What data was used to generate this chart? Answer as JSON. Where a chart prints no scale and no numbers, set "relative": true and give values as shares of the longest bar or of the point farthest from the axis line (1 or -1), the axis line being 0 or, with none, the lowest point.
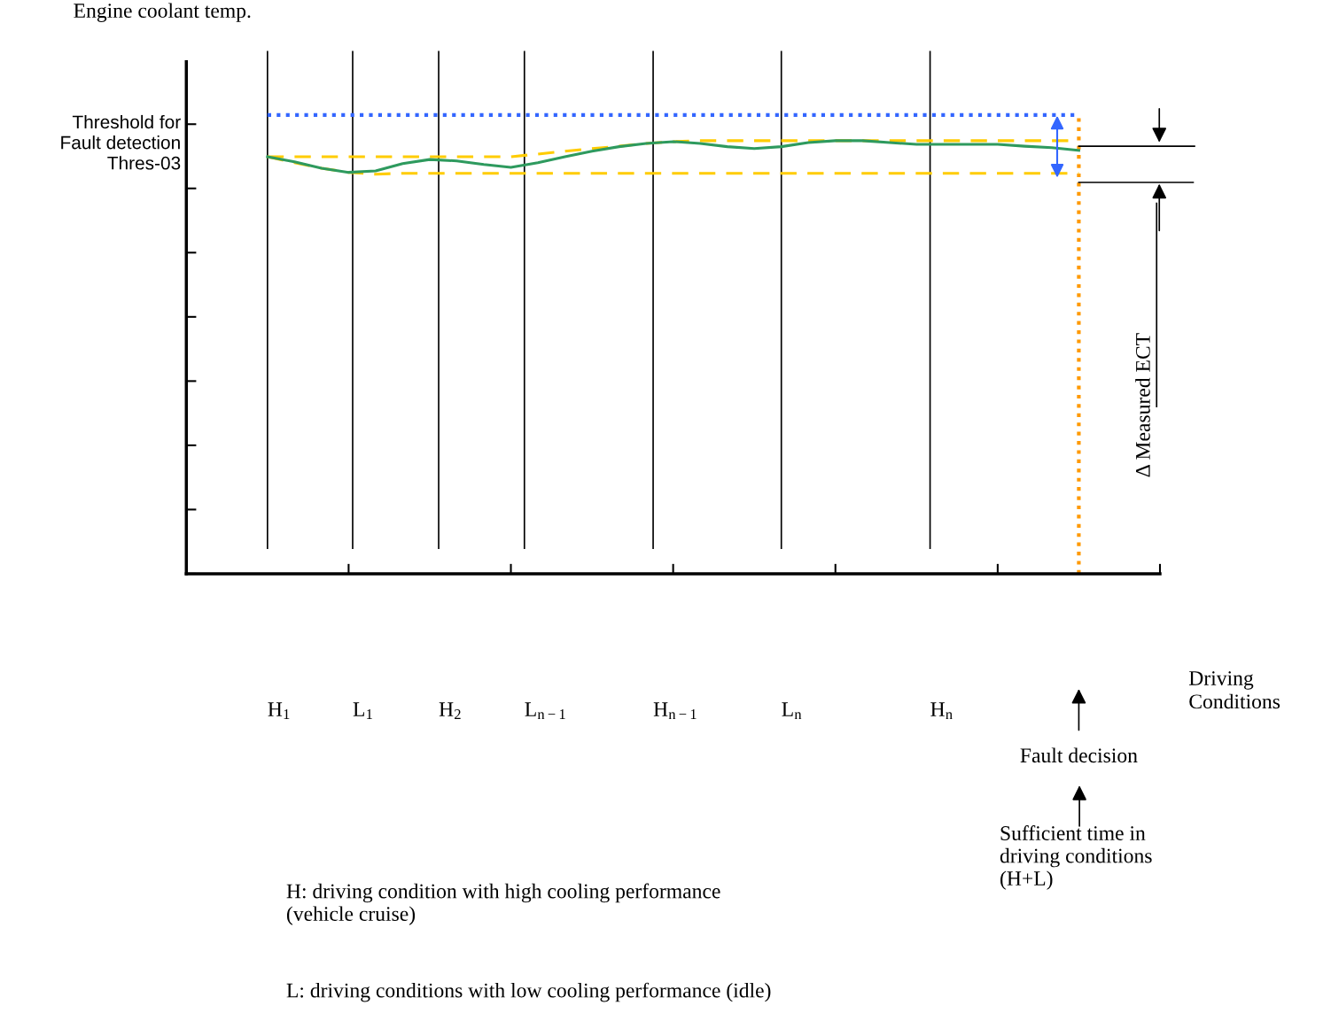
{
  "chart_data": {
    "type": "line",
    "relative": true,
    "ylabel": "Engine coolant temp.",
    "categories": [
      null,
      null,
      null,
      null,
      null,
      null,
      null,
      null,
      null,
      null,
      null,
      null,
      null,
      null,
      null,
      null,
      null,
      null,
      null,
      null,
      null,
      null,
      null,
      null,
      null,
      null,
      null,
      null,
      null,
      null,
      null
    ],
    "series": [
      {
        "name": "Threshold for\nFault detection\nThres-03",
        "color": "#3366ff",
        "line_style": "dotted",
        "values": [
          1,
          1,
          1,
          1,
          1,
          1,
          1,
          1,
          1,
          1,
          1,
          1,
          1,
          1,
          1,
          1,
          1,
          1,
          1,
          1,
          1,
          1,
          1,
          1,
          1,
          1,
          1,
          1,
          1,
          1,
          1
        ]
      },
      {
        "color": "#ffcc00",
        "line_style": "dashed",
        "values": [
          0.909,
          0.909,
          0.909,
          0.909,
          0.909,
          0.909,
          0.909,
          0.909,
          0.909,
          0.909,
          0.915,
          0.921,
          0.927,
          0.932,
          0.938,
          0.942,
          0.944,
          0.944,
          0.944,
          0.944,
          0.944,
          0.944,
          0.944,
          0.944,
          0.944,
          0.944,
          0.944,
          0.944,
          0.944,
          0.944,
          0.944
        ]
      },
      {
        "color": "#ffcc00",
        "line_style": "dashed",
        "values": [
          0.909,
          0.896,
          0.884,
          0.875,
          0.871,
          0.873,
          0.873,
          0.873,
          0.873,
          0.873,
          0.873,
          0.873,
          0.873,
          0.873,
          0.873,
          0.873,
          0.873,
          0.873,
          0.873,
          0.873,
          0.873,
          0.873,
          0.873,
          0.873,
          0.873,
          0.873,
          0.873,
          0.873,
          0.873,
          0.873,
          0.873
        ]
      },
      {
        "color": "#2e9a5e",
        "line_style": "solid",
        "values": [
          0.909,
          0.898,
          0.884,
          0.875,
          0.878,
          0.894,
          0.903,
          0.9,
          0.892,
          0.886,
          0.896,
          0.909,
          0.921,
          0.931,
          0.938,
          0.942,
          0.938,
          0.931,
          0.927,
          0.931,
          0.94,
          0.944,
          0.944,
          0.94,
          0.936,
          0.936,
          0.936,
          0.936,
          0.932,
          0.929,
          0.923
        ]
      }
    ],
    "annotations": [
      "H$_{1}$",
      "L$_{1}$",
      "H$_{2}$",
      "L$_{n−1}$",
      "H$_{n−1}$",
      "L$_{n}$",
      "H$_{n}$",
      "Fault decision",
      "Driving\nConditions",
      "Δ Measured ECT",
      "Sufficient time in\ndriving conditions\n(H+L)",
      "H: driving condition with high cooling performance\n(vehicle cruise)",
      "L: driving conditions with low cooling performance (idle)"
    ],
    "grid": false,
    "legend": false
  }
}
